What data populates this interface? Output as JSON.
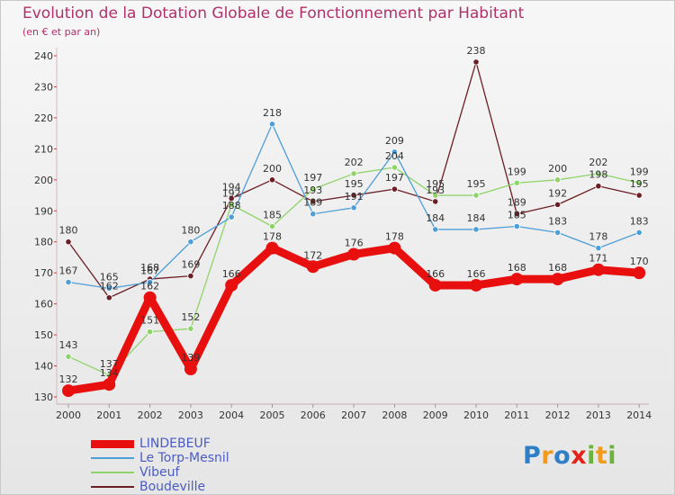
{
  "chart_data": {
    "type": "line",
    "title": "Evolution de la Dotation Globale de Fonctionnement par Habitant",
    "subtitle": "(en € et par an)",
    "xlabel": "",
    "ylabel": "",
    "x": [
      "2000",
      "2001",
      "2002",
      "2003",
      "2004",
      "2005",
      "2006",
      "2007",
      "2008",
      "2009",
      "2010",
      "2011",
      "2012",
      "2013",
      "2014"
    ],
    "ylim": [
      130,
      240
    ],
    "yticks": [
      130,
      140,
      150,
      160,
      170,
      180,
      190,
      200,
      210,
      220,
      230,
      240
    ],
    "grid": false,
    "legend_position": "bottom-left",
    "series": [
      {
        "name": "LINDEBEUF",
        "color": "#e8100f",
        "values": [
          132,
          134,
          162,
          139,
          166,
          178,
          172,
          176,
          178,
          166,
          166,
          168,
          168,
          171,
          170
        ],
        "labels": [
          "132",
          "134",
          "162",
          "139",
          "166",
          "178",
          "172",
          "176",
          "178",
          "166",
          "166",
          "168",
          "168",
          "171",
          "170"
        ]
      },
      {
        "name": "Le Torp-Mesnil",
        "color": "#4f9fd6",
        "values": [
          167,
          165,
          167,
          180,
          188,
          218,
          189,
          191,
          209,
          184,
          184,
          185,
          183,
          178,
          183
        ],
        "labels": [
          "167",
          "165",
          "167",
          "180",
          "188",
          "218",
          "189",
          "191",
          "209",
          "184",
          "184",
          "185",
          "183",
          "178",
          "183"
        ]
      },
      {
        "name": "Vibeuf",
        "color": "#8fd46a",
        "values": [
          143,
          137,
          151,
          152,
          192,
          185,
          197,
          202,
          204,
          195,
          195,
          199,
          200,
          202,
          199
        ],
        "labels": [
          "143",
          "137",
          "151",
          "152",
          "192",
          "185",
          "197",
          "202",
          "204",
          "195",
          "195",
          "199",
          "200",
          "202",
          "199"
        ]
      },
      {
        "name": "Boudeville",
        "color": "#6b1e24",
        "values": [
          180,
          162,
          168,
          169,
          194,
          200,
          193,
          195,
          197,
          193,
          238,
          189,
          192,
          198,
          195
        ],
        "labels": [
          "180",
          "162",
          "168",
          "169",
          "194",
          "200",
          "193",
          "195",
          "197",
          "193",
          "238",
          "189",
          "192",
          "198",
          "195"
        ]
      }
    ]
  },
  "logo": {
    "text": "Proxiti",
    "colors": [
      "#2f7fc6",
      "#f29a1c",
      "#2f7fc6",
      "#e2231a",
      "#6cb33e",
      "#f29a1c",
      "#6cb33e"
    ]
  }
}
